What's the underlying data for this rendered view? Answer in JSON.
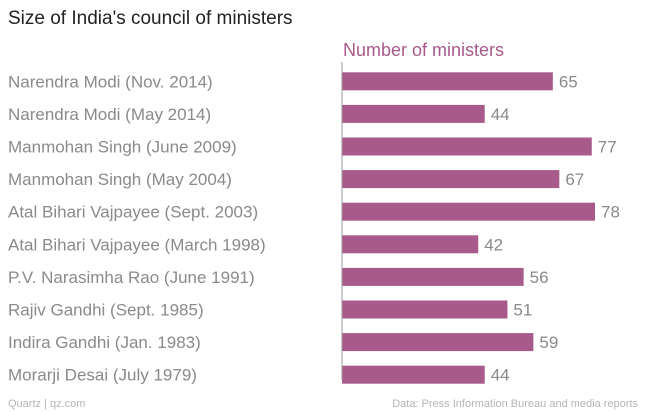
{
  "chart_data": {
    "type": "bar",
    "orientation": "horizontal",
    "title": "Size of India's council of ministers",
    "series_label": "Number of ministers",
    "categories": [
      "Narendra Modi (Nov. 2014)",
      "Narendra Modi (May 2014)",
      "Manmohan Singh (June 2009)",
      "Manmohan Singh (May 2004)",
      "Atal Bihari Vajpayee (Sept. 2003)",
      "Atal Bihari Vajpayee (March 1998)",
      "P.V. Narasimha Rao (June 1991)",
      "Rajiv Gandhi (Sept. 1985)",
      "Indira Gandhi (Jan. 1983)",
      "Morarji Desai (July 1979)"
    ],
    "values": [
      65,
      44,
      77,
      67,
      78,
      42,
      56,
      51,
      59,
      44
    ],
    "xlim": [
      0,
      78
    ],
    "bar_color": "#a85a8a",
    "source": "Quartz | qz.com",
    "note": "Data: Press Information Bureau and media reports"
  }
}
